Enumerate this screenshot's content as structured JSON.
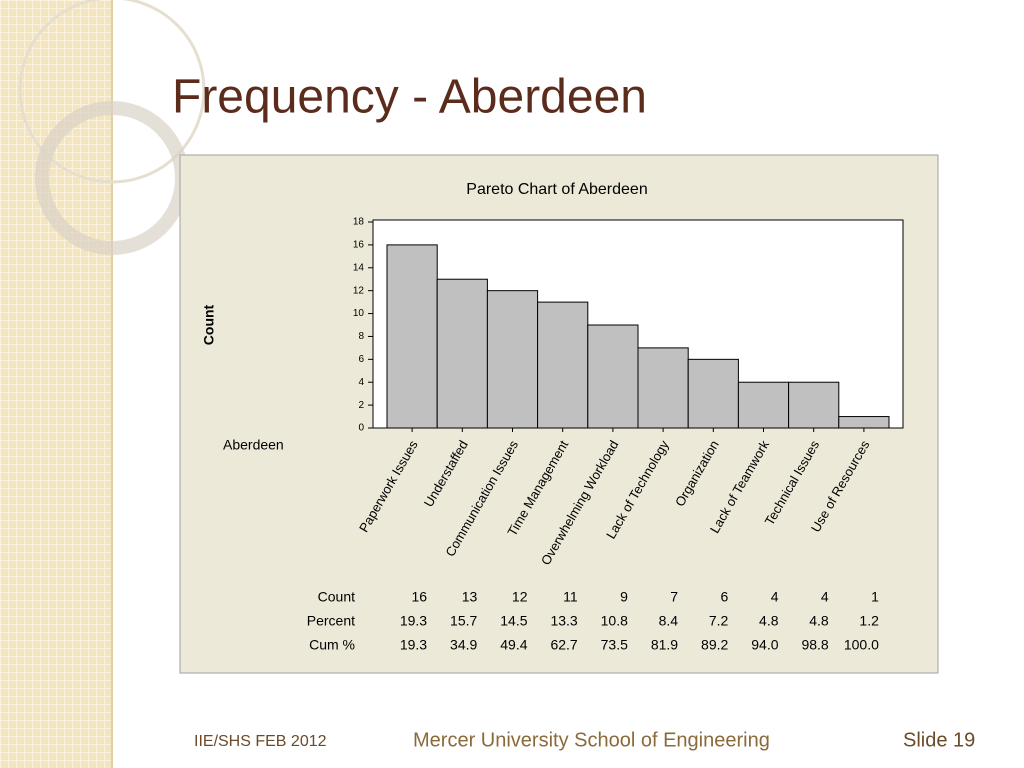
{
  "slide": {
    "title": "Frequency - Aberdeen",
    "footer_left": "IIE/SHS   FEB 2012",
    "footer_center": "Mercer University School of Engineering",
    "footer_right": "Slide 19"
  },
  "chart_data": {
    "type": "bar",
    "title": "Pareto Chart of Aberdeen",
    "y_label": "Count",
    "group_label": "Aberdeen",
    "categories": [
      "Paperwork Issues",
      "Understaffed",
      "Communication Issues",
      "Time Management",
      "Overwhelming Workload",
      "Lack of Technology",
      "Organization",
      "Lack of Teamwork",
      "Technical Issues",
      "Use of Resources"
    ],
    "values": [
      16,
      13,
      12,
      11,
      9,
      7,
      6,
      4,
      4,
      1
    ],
    "color": "#c0c0c0",
    "ylim": [
      0,
      18
    ],
    "yticks": [
      0,
      2,
      4,
      6,
      8,
      10,
      12,
      14,
      16,
      18
    ],
    "table": {
      "row_labels": [
        "Count",
        "Percent",
        "Cum %"
      ],
      "percent": [
        19.3,
        15.7,
        14.5,
        13.3,
        10.8,
        8.4,
        7.2,
        4.8,
        4.8,
        1.2
      ],
      "cumulative_percent": [
        "19.3",
        "34.9",
        "49.4",
        "62.7",
        "73.5",
        "81.9",
        "89.2",
        "94.0",
        "98.8",
        "100.0"
      ]
    }
  }
}
